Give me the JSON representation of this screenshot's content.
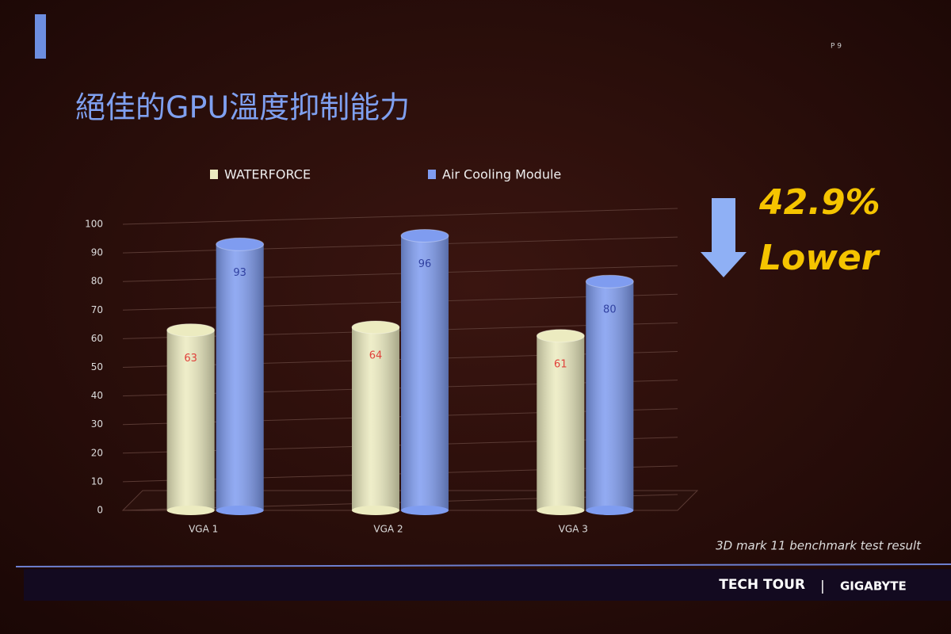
{
  "page": "P 9",
  "title": "絕佳的GPU溫度抑制能力",
  "chart_data": {
    "type": "bar",
    "categories": [
      "VGA 1",
      "VGA 2",
      "VGA 3"
    ],
    "series": [
      {
        "name": "WATERFORCE",
        "color": "#ecebc0",
        "values": [
          63,
          64,
          61
        ]
      },
      {
        "name": "Air Cooling Module",
        "color": "#7f9cf0",
        "values": [
          93,
          96,
          80
        ]
      }
    ],
    "ylim": [
      0,
      100
    ],
    "yticks": [
      0,
      10,
      20,
      30,
      40,
      50,
      60,
      70,
      80,
      90,
      100
    ],
    "grid": true,
    "legend": "top"
  },
  "callout": {
    "percent": "42.9%",
    "text": "Lower"
  },
  "footnote": "3D mark 11 benchmark test result",
  "footer": {
    "event": "TECH TOUR",
    "brand": "GIGABYTE"
  }
}
